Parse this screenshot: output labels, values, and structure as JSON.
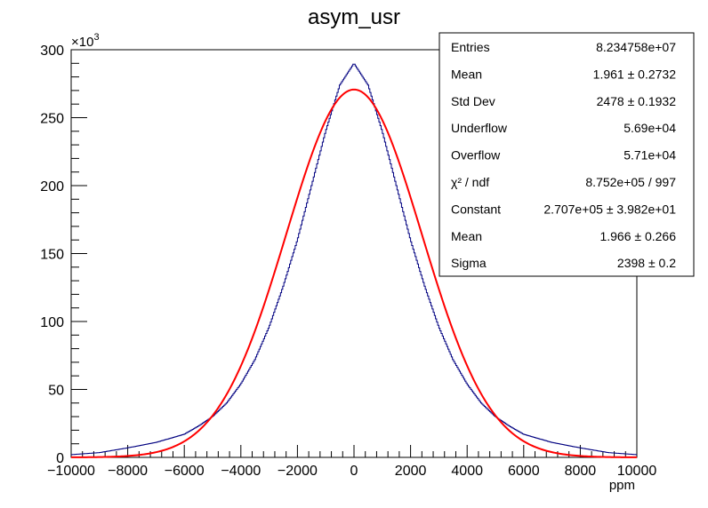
{
  "chart_data": {
    "type": "line",
    "title": "asym_usr",
    "xlabel": "ppm",
    "ylabel": "",
    "xlim": [
      -10000,
      10000
    ],
    "ylim": [
      0,
      300000
    ],
    "y_multiplier_label": "×10",
    "y_multiplier_exponent": "3",
    "x_ticks": [
      -10000,
      -8000,
      -6000,
      -4000,
      -2000,
      0,
      2000,
      4000,
      6000,
      8000,
      10000
    ],
    "y_ticks": [
      0,
      50,
      100,
      150,
      200,
      250,
      300
    ],
    "x_tick_labels": [
      "−10000",
      "−8000",
      "−6000",
      "−4000",
      "−2000",
      "0",
      "2000",
      "4000",
      "6000",
      "8000",
      "10000"
    ],
    "y_tick_labels": [
      "0",
      "50",
      "100",
      "150",
      "200",
      "250",
      "300"
    ],
    "series": [
      {
        "kind": "histogram",
        "color": "#000080",
        "x": [
          -10000,
          -9000,
          -8000,
          -7000,
          -6000,
          -5500,
          -5000,
          -4500,
          -4000,
          -3500,
          -3000,
          -2500,
          -2000,
          -1500,
          -1000,
          -500,
          0,
          500,
          1000,
          1500,
          2000,
          2500,
          3000,
          3500,
          4000,
          4500,
          5000,
          5500,
          6000,
          7000,
          8000,
          9000,
          10000
        ],
        "y": [
          2000,
          3500,
          7000,
          11000,
          17000,
          23000,
          30000,
          40000,
          54000,
          72000,
          96000,
          126000,
          160000,
          200000,
          240000,
          274000,
          290000,
          274000,
          240000,
          200000,
          160000,
          126000,
          96000,
          72000,
          54000,
          40000,
          30000,
          23000,
          17000,
          11000,
          7000,
          3500,
          2000
        ]
      },
      {
        "kind": "gaussian-fit",
        "color": "#ff0000",
        "constant": 270700,
        "mean": 1.966,
        "sigma": 2398
      }
    ],
    "legend_position": "top-right",
    "stats_box": {
      "rows": [
        {
          "label": "Entries",
          "value": "8.234758e+07"
        },
        {
          "label": "Mean",
          "value": "1.961 ± 0.2732"
        },
        {
          "label": "Std Dev",
          "value": "2478 ± 0.1932"
        },
        {
          "label": "Underflow",
          "value": "5.69e+04"
        },
        {
          "label": "Overflow",
          "value": "5.71e+04"
        },
        {
          "label": "χ² / ndf",
          "value": "8.752e+05 / 997"
        },
        {
          "label": "Constant",
          "value": "2.707e+05 ± 3.982e+01"
        },
        {
          "label": "Mean",
          "value": "1.966 ± 0.266"
        },
        {
          "label": "Sigma",
          "value": "2398 ± 0.2"
        }
      ]
    }
  }
}
